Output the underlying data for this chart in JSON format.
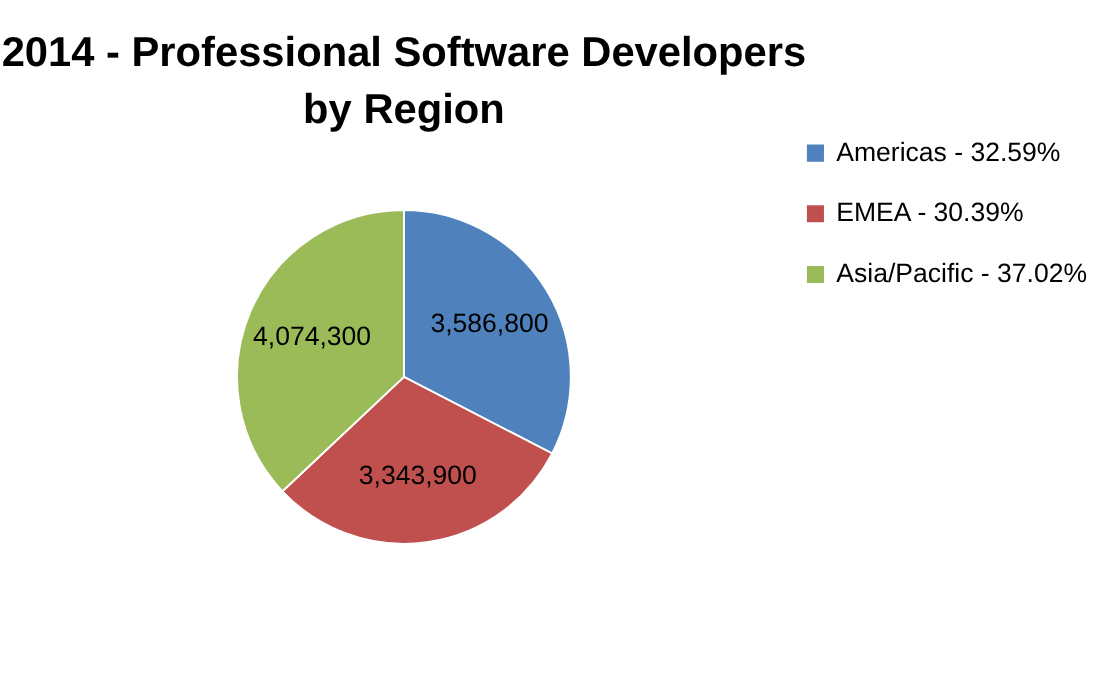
{
  "chart_data": {
    "type": "pie",
    "title": "2014 - Professional Software Developers\nby Region",
    "categories": [
      "Americas - 32.59%",
      "EMEA - 30.39%",
      "Asia/Pacific - 37.02%"
    ],
    "values": [
      3586800,
      3343900,
      4074300
    ],
    "value_labels": [
      "3,586,800",
      "3,343,900",
      "4,074,300"
    ],
    "colors": [
      "#4f81bd",
      "#c0504d",
      "#9bbb59"
    ],
    "legend": "right"
  }
}
